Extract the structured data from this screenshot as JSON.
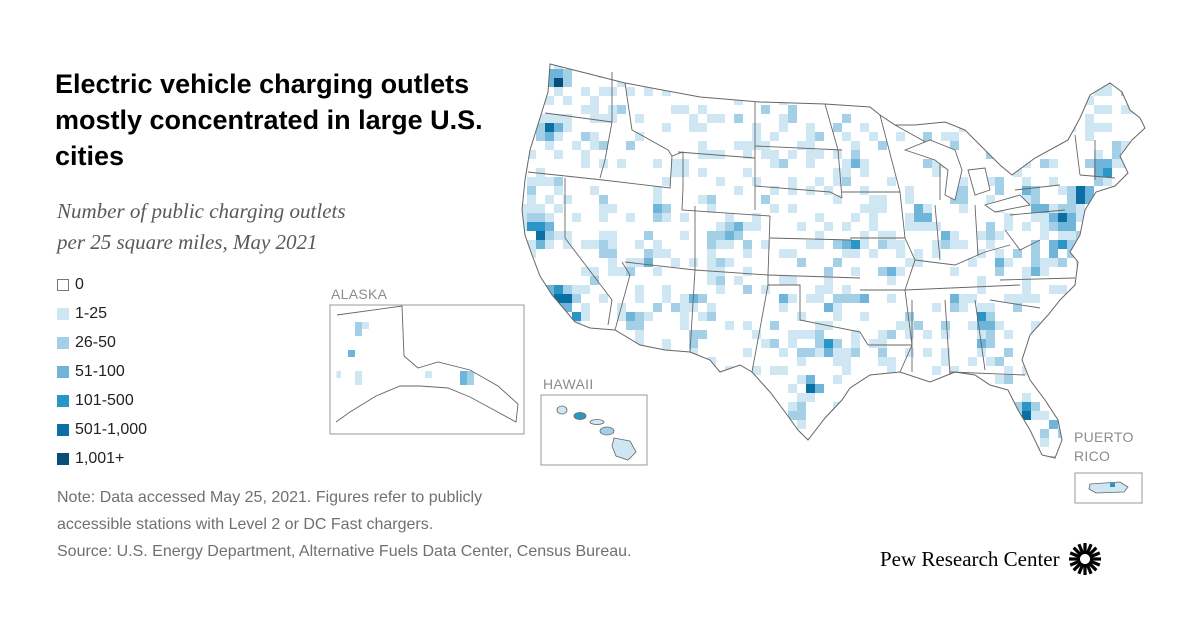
{
  "title": "Electric vehicle charging outlets mostly concentrated in large U.S. cities",
  "subtitle_line1": "Number of public charging outlets",
  "subtitle_line2": "per 25 square miles, May 2021",
  "legend": [
    {
      "label": "0",
      "color": "#ffffff"
    },
    {
      "label": "1-25",
      "color": "#cfe6f3"
    },
    {
      "label": "26-50",
      "color": "#a3cfe7"
    },
    {
      "label": "51-100",
      "color": "#6fb5da"
    },
    {
      "label": "101-500",
      "color": "#2a96c6"
    },
    {
      "label": "501-1,000",
      "color": "#0c6fa3"
    },
    {
      "label": "1,001+",
      "color": "#074f78"
    }
  ],
  "insets": {
    "alaska": "ALASKA",
    "hawaii": "HAWAII",
    "puerto_rico_line1": "PUERTO",
    "puerto_rico_line2": "RICO"
  },
  "notes": {
    "line1": "Note: Data accessed May 25, 2021. Figures refer to publicly",
    "line2": "accessible stations with Level 2 or DC Fast chargers.",
    "line3": "Source: U.S. Energy Department, Alternative Fuels Data Center, Census Bureau."
  },
  "brand": "Pew Research Center",
  "colors": {
    "state_border": "#666666",
    "inset_border": "#999999",
    "map_fill": "#ffffff"
  }
}
